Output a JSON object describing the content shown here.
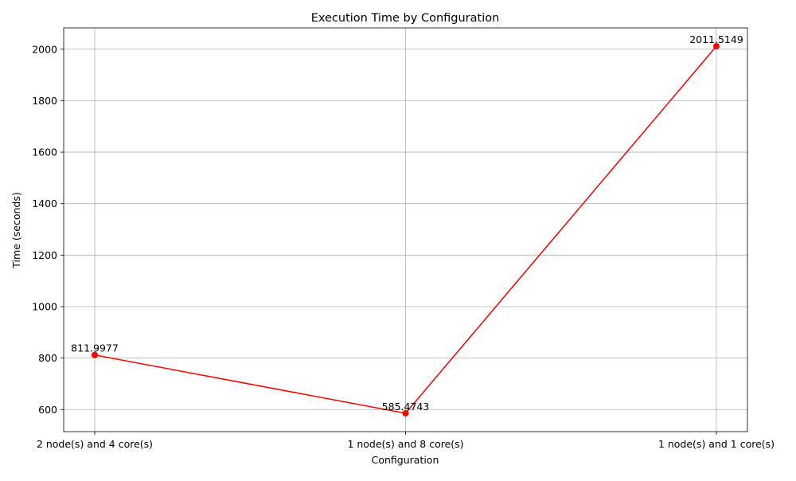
{
  "chart_data": {
    "type": "line",
    "title": "Execution Time by Configuration",
    "xlabel": "Configuration",
    "ylabel": "Time (seconds)",
    "categories": [
      "2 node(s) and 4 core(s)",
      "1 node(s) and 8 core(s)",
      "1 node(s) and 1 core(s)"
    ],
    "series": [
      {
        "values": [
          811.9977,
          585.4743,
          2011.5149
        ],
        "color": "#ff0000",
        "marker": "circle"
      }
    ],
    "data_labels": [
      "811.9977",
      "585.4743",
      "2011.5149"
    ],
    "yticks": [
      600,
      800,
      1000,
      1200,
      1400,
      1600,
      1800,
      2000
    ],
    "ylim": [
      514.2,
      2082.8
    ],
    "grid": true,
    "legend": "none"
  }
}
